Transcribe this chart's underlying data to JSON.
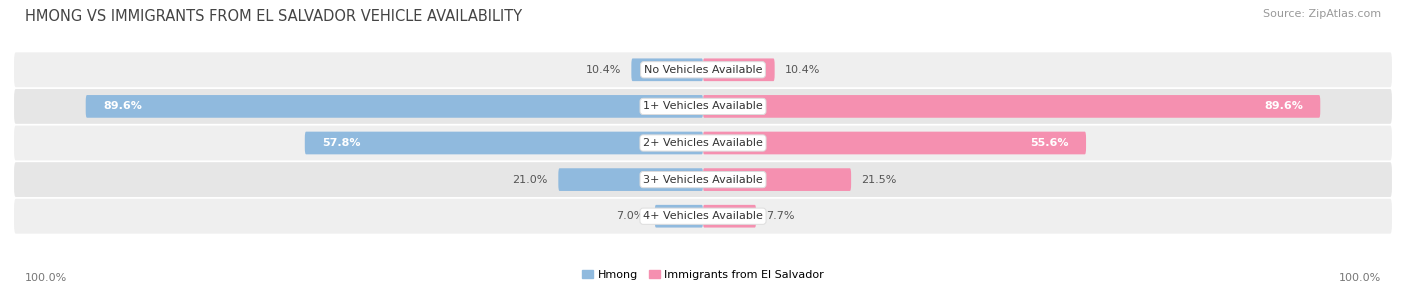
{
  "title": "HMONG VS IMMIGRANTS FROM EL SALVADOR VEHICLE AVAILABILITY",
  "source": "Source: ZipAtlas.com",
  "categories": [
    "No Vehicles Available",
    "1+ Vehicles Available",
    "2+ Vehicles Available",
    "3+ Vehicles Available",
    "4+ Vehicles Available"
  ],
  "hmong_values": [
    10.4,
    89.6,
    57.8,
    21.0,
    7.0
  ],
  "elsalvador_values": [
    10.4,
    89.6,
    55.6,
    21.5,
    7.7
  ],
  "hmong_color": "#90bade",
  "hmong_color_dark": "#5b9dcc",
  "elsalvador_color": "#f590b0",
  "elsalvador_color_dark": "#e8547a",
  "hmong_label": "Hmong",
  "elsalvador_label": "Immigrants from El Salvador",
  "max_value": 100.0,
  "row_bg_odd": "#efefef",
  "row_bg_even": "#e6e6e6",
  "title_fontsize": 10.5,
  "source_fontsize": 8,
  "label_fontsize": 8,
  "value_fontsize": 8,
  "footer_fontsize": 8
}
